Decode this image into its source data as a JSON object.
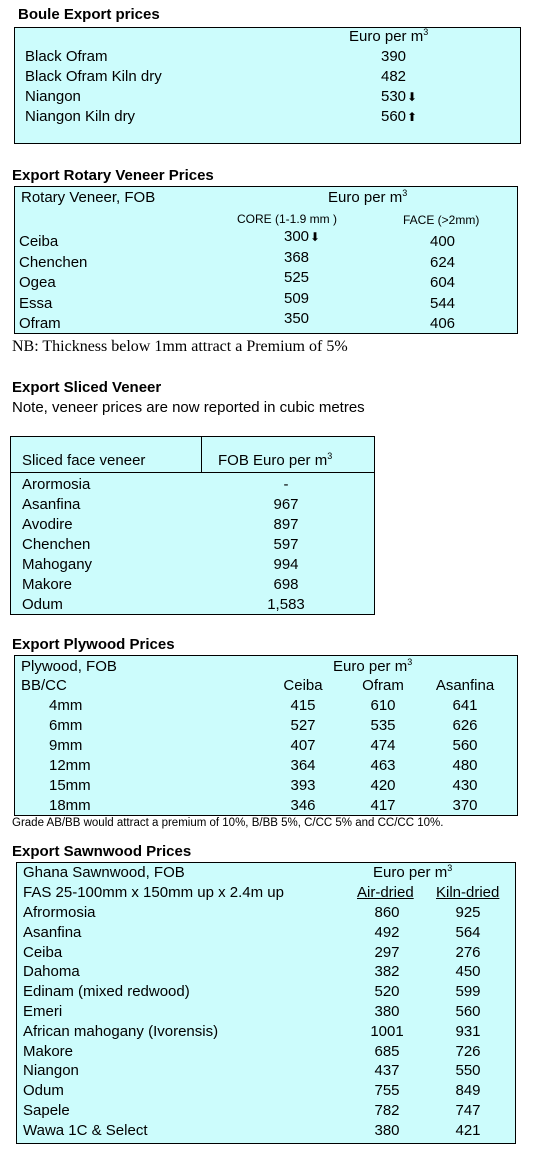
{
  "boule": {
    "title": "Boule Export prices",
    "unit": "Euro per m",
    "unit_sup": "3",
    "rows": [
      {
        "name": "Black Ofram",
        "value": "390",
        "arrow": ""
      },
      {
        "name": "Black Ofram  Kiln dry",
        "value": "482",
        "arrow": ""
      },
      {
        "name": "Niangon",
        "value": "530",
        "arrow": "down"
      },
      {
        "name": "Niangon Kiln dry",
        "value": "560",
        "arrow": "up"
      }
    ]
  },
  "rotary": {
    "title": "Export Rotary Veneer Prices",
    "header_left": "Rotary Veneer,  FOB",
    "unit": "Euro  per m",
    "unit_sup": "3",
    "col1": "CORE (1-1.9 mm )",
    "col2": "FACE (>2mm)",
    "rows": [
      {
        "name": "Ceiba",
        "core": "300",
        "arrow": "down",
        "face": "400"
      },
      {
        "name": "Chenchen",
        "core": "368",
        "arrow": "",
        "face": "624"
      },
      {
        "name": "Ogea",
        "core": "525",
        "arrow": "",
        "face": "604"
      },
      {
        "name": "Essa",
        "core": "509",
        "arrow": "",
        "face": "544"
      },
      {
        "name": "Ofram",
        "core": "350",
        "arrow": "",
        "face": "406"
      }
    ],
    "note": "NB: Thickness below 1mm attract a Premium of 5%"
  },
  "sliced": {
    "title": "Export Sliced Veneer",
    "subtitle": "Note, veneer prices are now reported in cubic metres",
    "header_left": "Sliced face veneer",
    "header_right": "FOB Euro per m",
    "unit_sup": "3",
    "rows": [
      {
        "name": "Arormosia",
        "value": "-"
      },
      {
        "name": "Asanfina",
        "value": "967"
      },
      {
        "name": "Avodire",
        "value": "897"
      },
      {
        "name": "Chenchen",
        "value": "597"
      },
      {
        "name": "Mahogany",
        "value": "994"
      },
      {
        "name": "Makore",
        "value": "698"
      },
      {
        "name": "Odum",
        "value": "1,583"
      }
    ]
  },
  "plywood": {
    "title": "Export Plywood Prices",
    "header_left": "Plywood, FOB",
    "header_left2": "BB/CC",
    "unit": "Euro per m",
    "unit_sup": "3",
    "cols": [
      "Ceiba",
      "Ofram",
      "Asanfina"
    ],
    "rows": [
      {
        "name": "4mm",
        "v": [
          "415",
          "610",
          "641"
        ]
      },
      {
        "name": "6mm",
        "v": [
          "527",
          "535",
          "626"
        ]
      },
      {
        "name": "9mm",
        "v": [
          "407",
          "474",
          "560"
        ]
      },
      {
        "name": "12mm",
        "v": [
          "364",
          "463",
          "480"
        ]
      },
      {
        "name": "15mm",
        "v": [
          "393",
          "420",
          "430"
        ]
      },
      {
        "name": "18mm",
        "v": [
          "346",
          "417",
          "370"
        ]
      }
    ],
    "note": "Grade AB/BB would attract a premium of 10%, B/BB 5%, C/CC 5% and CC/CC 10%."
  },
  "sawn": {
    "title": "Export Sawnwood Prices",
    "header_left": "Ghana Sawnwood, FOB",
    "header_left2": "FAS 25-100mm x 150mm up x 2.4m up",
    "unit": "Euro per m",
    "unit_sup": "3",
    "cols": [
      "Air-dried",
      "Kiln-dried"
    ],
    "rows": [
      {
        "name": "Afrormosia",
        "v": [
          "860",
          "925"
        ]
      },
      {
        "name": "Asanfina",
        "v": [
          "492",
          "564"
        ]
      },
      {
        "name": "Ceiba",
        "v": [
          "297",
          "276"
        ]
      },
      {
        "name": "Dahoma",
        "v": [
          "382",
          "450"
        ]
      },
      {
        "name": "Edinam (mixed redwood)",
        "v": [
          "520",
          "599"
        ]
      },
      {
        "name": "Emeri",
        "v": [
          "380",
          "560"
        ]
      },
      {
        "name": "African mahogany (Ivorensis)",
        "v": [
          "1001",
          "931"
        ]
      },
      {
        "name": "Makore",
        "v": [
          "685",
          "726"
        ]
      },
      {
        "name": "Niangon",
        "v": [
          "437",
          "550"
        ]
      },
      {
        "name": "Odum",
        "v": [
          "755",
          "849"
        ]
      },
      {
        "name": "Sapele",
        "v": [
          "782",
          "747"
        ]
      },
      {
        "name": "Wawa 1C & Select",
        "v": [
          "380",
          "421"
        ]
      }
    ]
  }
}
